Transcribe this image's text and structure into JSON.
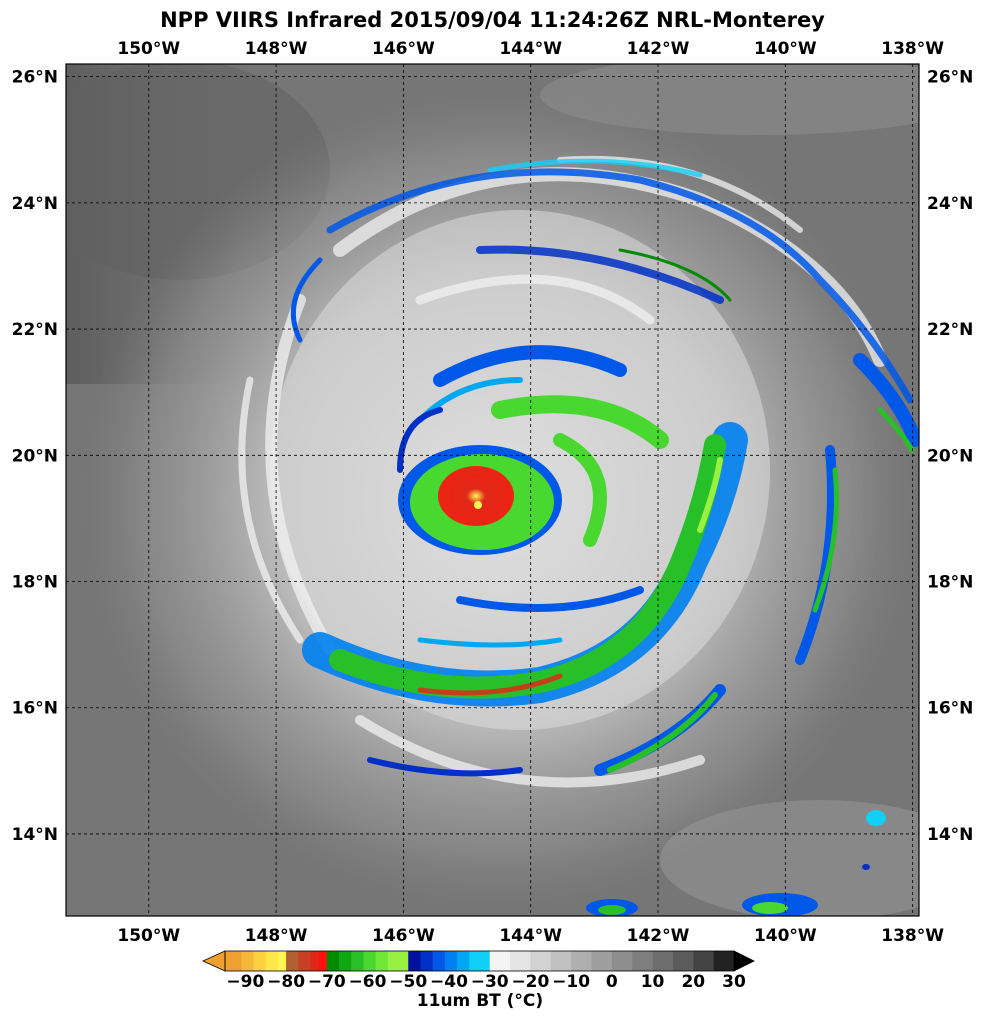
{
  "title": "NPP VIIRS Infrared 2015/09/04 11:24:26Z NRL-Monterey",
  "map": {
    "lon_range": [
      -151.3,
      -137.9
    ],
    "lat_range": [
      12.7,
      26.2
    ],
    "lon_ticks": [
      {
        "value": -150,
        "label": "150°W"
      },
      {
        "value": -148,
        "label": "148°W"
      },
      {
        "value": -146,
        "label": "146°W"
      },
      {
        "value": -144,
        "label": "144°W"
      },
      {
        "value": -142,
        "label": "142°W"
      },
      {
        "value": -140,
        "label": "140°W"
      },
      {
        "value": -138,
        "label": "138°W"
      }
    ],
    "lat_ticks": [
      {
        "value": 26,
        "label": "26°N"
      },
      {
        "value": 24,
        "label": "24°N"
      },
      {
        "value": 22,
        "label": "22°N"
      },
      {
        "value": 20,
        "label": "20°N"
      },
      {
        "value": 18,
        "label": "18°N"
      },
      {
        "value": 16,
        "label": "16°N"
      },
      {
        "value": 14,
        "label": "14°N"
      }
    ],
    "gridlines": true,
    "background_color": "#767676",
    "storm_center": {
      "lon": -144.9,
      "lat": 19.1
    }
  },
  "colorbar": {
    "label": "11um BT ($^\\circ$C)",
    "label_display": "11um BT (°C)",
    "vmin": -95,
    "vmax": 30,
    "ticks": [
      {
        "value": -90,
        "label": "−90"
      },
      {
        "value": -80,
        "label": "−80"
      },
      {
        "value": -70,
        "label": "−70"
      },
      {
        "value": -60,
        "label": "−60"
      },
      {
        "value": -50,
        "label": "−50"
      },
      {
        "value": -40,
        "label": "−40"
      },
      {
        "value": -30,
        "label": "−30"
      },
      {
        "value": -20,
        "label": "−20"
      },
      {
        "value": -10,
        "label": "−10"
      },
      {
        "value": 0,
        "label": "0"
      },
      {
        "value": 10,
        "label": "10"
      },
      {
        "value": 20,
        "label": "20"
      },
      {
        "value": 30,
        "label": "30"
      }
    ],
    "segments": [
      {
        "from": -95,
        "to": -91,
        "color": "#f0a030"
      },
      {
        "from": -91,
        "to": -88,
        "color": "#f5b838"
      },
      {
        "from": -88,
        "to": -85,
        "color": "#f8d040"
      },
      {
        "from": -85,
        "to": -82,
        "color": "#fde84a"
      },
      {
        "from": -82,
        "to": -80,
        "color": "#fff650"
      },
      {
        "from": -80,
        "to": -77,
        "color": "#b06030"
      },
      {
        "from": -77,
        "to": -74,
        "color": "#c84028"
      },
      {
        "from": -74,
        "to": -72,
        "color": "#e02818"
      },
      {
        "from": -72,
        "to": -70,
        "color": "#ff1010"
      },
      {
        "from": -70,
        "to": -67,
        "color": "#008a00"
      },
      {
        "from": -67,
        "to": -64,
        "color": "#10a810"
      },
      {
        "from": -64,
        "to": -61,
        "color": "#28c028"
      },
      {
        "from": -61,
        "to": -58,
        "color": "#48d830"
      },
      {
        "from": -58,
        "to": -55,
        "color": "#70e838"
      },
      {
        "from": -55,
        "to": -50,
        "color": "#98f040"
      },
      {
        "from": -50,
        "to": -47,
        "color": "#0010a0"
      },
      {
        "from": -47,
        "to": -44,
        "color": "#0030c8"
      },
      {
        "from": -44,
        "to": -41,
        "color": "#0058e8"
      },
      {
        "from": -41,
        "to": -38,
        "color": "#0080f0"
      },
      {
        "from": -38,
        "to": -35,
        "color": "#00a8f4"
      },
      {
        "from": -35,
        "to": -30,
        "color": "#10d0f8"
      },
      {
        "from": -30,
        "to": -25,
        "color": "#f4f4f4"
      },
      {
        "from": -25,
        "to": -20,
        "color": "#e4e4e4"
      },
      {
        "from": -20,
        "to": -15,
        "color": "#d2d2d2"
      },
      {
        "from": -15,
        "to": -10,
        "color": "#c0c0c0"
      },
      {
        "from": -10,
        "to": -5,
        "color": "#afafaf"
      },
      {
        "from": -5,
        "to": 0,
        "color": "#9e9e9e"
      },
      {
        "from": 0,
        "to": 5,
        "color": "#8e8e8e"
      },
      {
        "from": 5,
        "to": 10,
        "color": "#7e7e7e"
      },
      {
        "from": 10,
        "to": 15,
        "color": "#6e6e6e"
      },
      {
        "from": 15,
        "to": 20,
        "color": "#5c5c5c"
      },
      {
        "from": 20,
        "to": 25,
        "color": "#444444"
      },
      {
        "from": 25,
        "to": 30,
        "color": "#222222"
      }
    ]
  }
}
